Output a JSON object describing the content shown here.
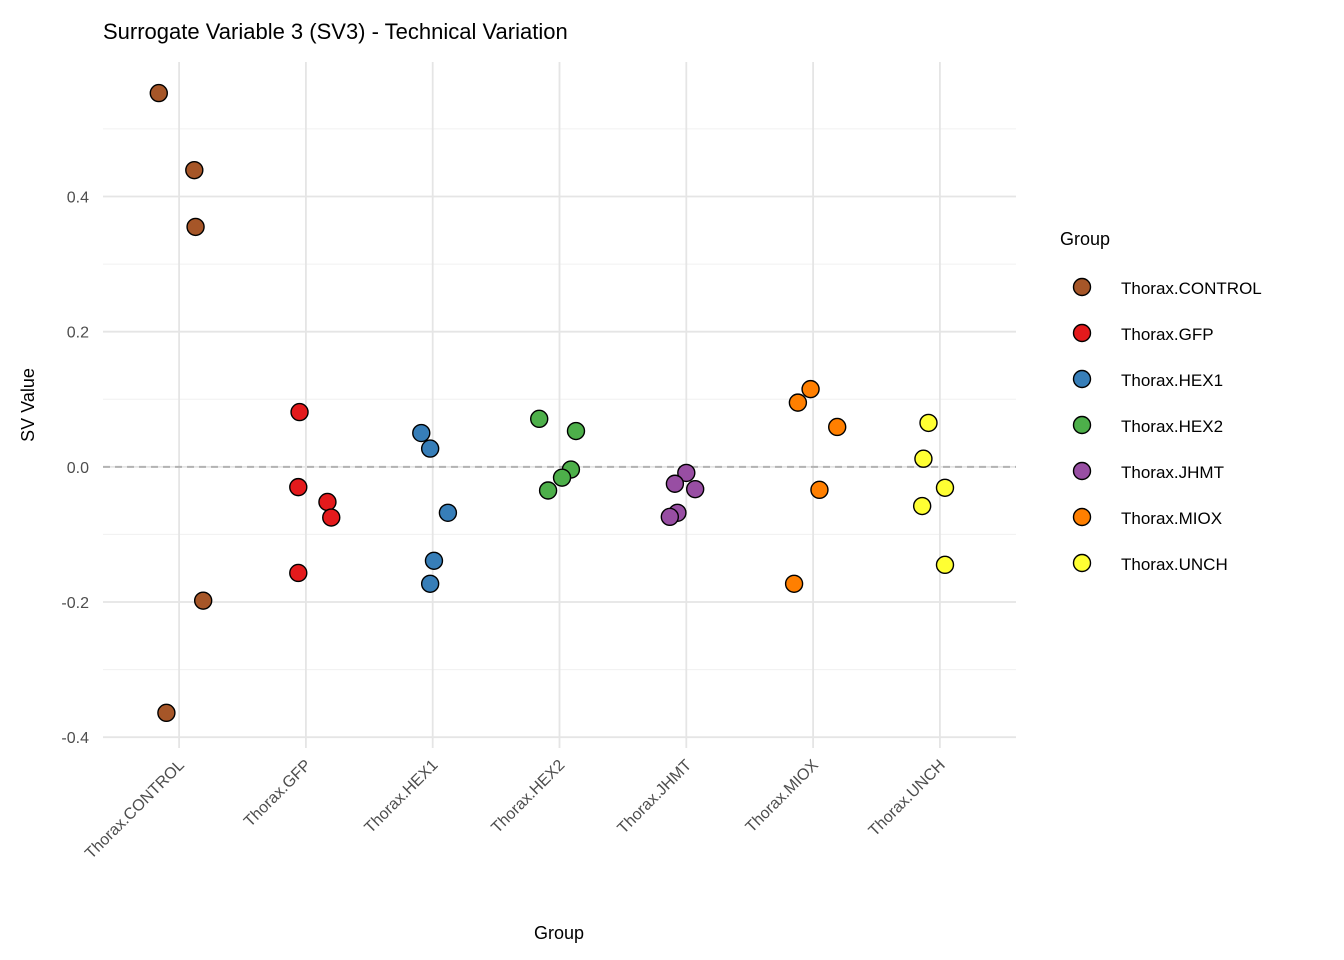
{
  "chart_data": {
    "type": "scatter",
    "title": "Surrogate Variable 3 (SV3) - Technical Variation",
    "xlabel": "Group",
    "ylabel": "SV Value",
    "categories": [
      "Thorax.CONTROL",
      "Thorax.GFP",
      "Thorax.HEX1",
      "Thorax.HEX2",
      "Thorax.JHMT",
      "Thorax.MIOX",
      "Thorax.UNCH"
    ],
    "ylim": [
      -0.416,
      0.599
    ],
    "yticks": [
      -0.4,
      -0.2,
      0.0,
      0.2,
      0.4
    ],
    "ytick_labels": [
      "-0.4",
      "-0.2",
      "0.0",
      "0.2",
      "0.4"
    ],
    "grid": true,
    "reference_line": {
      "y": 0,
      "style": "dashed",
      "color": "#b3b3b3"
    },
    "legend": {
      "title": "Group",
      "placement": "right"
    },
    "series": [
      {
        "name": "Thorax.CONTROL",
        "color": "#A65628",
        "values": [
          0.553,
          0.439,
          0.355,
          -0.198,
          -0.364
        ],
        "jitter": [
          -0.16,
          0.12,
          0.13,
          0.19,
          -0.1
        ]
      },
      {
        "name": "Thorax.GFP",
        "color": "#E41A1C",
        "values": [
          0.081,
          -0.03,
          -0.052,
          -0.075,
          -0.157
        ],
        "jitter": [
          -0.05,
          -0.06,
          0.17,
          0.2,
          -0.06
        ]
      },
      {
        "name": "Thorax.HEX1",
        "color": "#377EB8",
        "values": [
          0.05,
          0.027,
          -0.068,
          -0.139,
          -0.173
        ],
        "jitter": [
          -0.09,
          -0.02,
          0.12,
          0.01,
          -0.02
        ]
      },
      {
        "name": "Thorax.HEX2",
        "color": "#4DAF4A",
        "values": [
          0.071,
          0.053,
          -0.004,
          -0.016,
          -0.035
        ],
        "jitter": [
          -0.16,
          0.13,
          0.09,
          0.02,
          -0.09
        ]
      },
      {
        "name": "Thorax.JHMT",
        "color": "#984EA3",
        "values": [
          -0.009,
          -0.025,
          -0.033,
          -0.068,
          -0.074
        ],
        "jitter": [
          0.0,
          -0.09,
          0.07,
          -0.07,
          -0.13
        ]
      },
      {
        "name": "Thorax.MIOX",
        "color": "#FF7F00",
        "values": [
          0.115,
          0.095,
          0.059,
          -0.034,
          -0.173
        ],
        "jitter": [
          -0.02,
          -0.12,
          0.19,
          0.05,
          -0.15
        ]
      },
      {
        "name": "Thorax.UNCH",
        "color": "#FFFF33",
        "values": [
          0.065,
          0.012,
          -0.031,
          -0.058,
          -0.145
        ],
        "jitter": [
          -0.09,
          -0.13,
          0.04,
          -0.14,
          0.04
        ]
      }
    ]
  }
}
